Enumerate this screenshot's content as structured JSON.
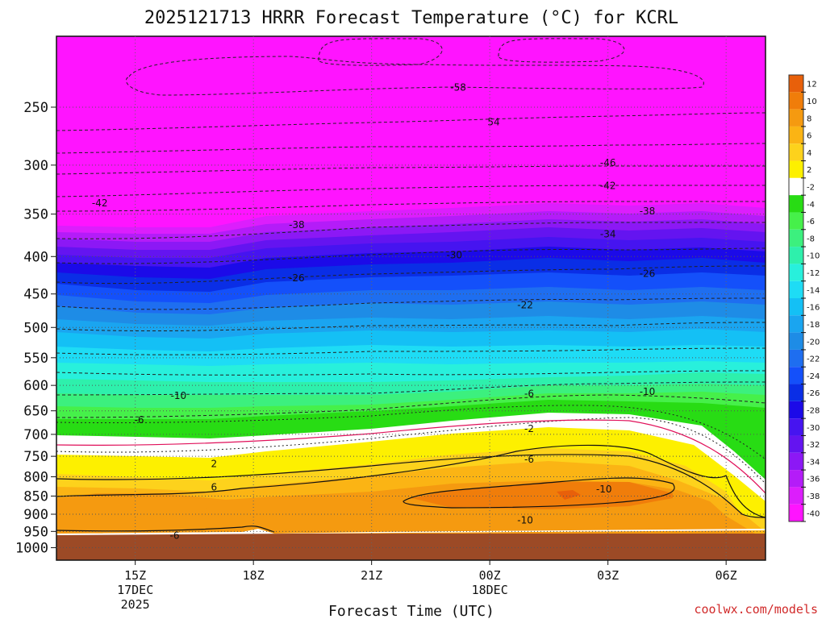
{
  "chart_data": {
    "type": "heatmap",
    "title": "2025121713 HRRR Forecast Temperature (°C) for KCRL",
    "xlabel": "Forecast Time (UTC)",
    "ylabel": "",
    "credit": "coolwx.com/models",
    "x_ticks": [
      {
        "label": "15Z",
        "hour": 15,
        "sub": [
          "17DEC",
          "2025"
        ]
      },
      {
        "label": "18Z",
        "hour": 18,
        "sub": []
      },
      {
        "label": "21Z",
        "hour": 21,
        "sub": []
      },
      {
        "label": "00Z",
        "hour": 24,
        "sub": [
          "18DEC"
        ]
      },
      {
        "label": "03Z",
        "hour": 27,
        "sub": []
      },
      {
        "label": "06Z",
        "hour": 30,
        "sub": []
      }
    ],
    "xlim_hours": [
      13,
      31
    ],
    "y_ticks": [
      250,
      300,
      350,
      400,
      450,
      500,
      550,
      600,
      650,
      700,
      750,
      800,
      850,
      900,
      950,
      1000
    ],
    "ylim_hPa": [
      200,
      1040
    ],
    "y_scale": "log",
    "ground_pressure_hPa": 968,
    "colorbar": {
      "labels": [
        "12",
        "10",
        "8",
        "6",
        "4",
        "2",
        "-2",
        "-4",
        "-6",
        "-8",
        "-10",
        "-12",
        "-14",
        "-16",
        "-18",
        "-20",
        "-22",
        "-24",
        "-26",
        "-28",
        "-30",
        "-32",
        "-34",
        "-36",
        "-38",
        "-40"
      ],
      "colors": [
        "#e8600a",
        "#f07d0a",
        "#f59a10",
        "#fbb414",
        "#fdd21c",
        "#fdf000",
        "#ffffff",
        "#28dc14",
        "#46f04a",
        "#3cf07e",
        "#2ef0ac",
        "#28f0dc",
        "#1edcf5",
        "#14c0f5",
        "#1aa5f0",
        "#1e8ce6",
        "#1e6ef0",
        "#1450fa",
        "#0a2ee6",
        "#1c0ae8",
        "#4614f0",
        "#6414f0",
        "#8c18f5",
        "#b41cf8",
        "#dc1efc",
        "#ff14ff"
      ]
    },
    "isotherms": [
      {
        "value": "-58",
        "hour": 23.2,
        "p": 235
      },
      {
        "value": "54",
        "hour": 24.1,
        "p": 262
      },
      {
        "value": "-46",
        "hour": 27.0,
        "p": 298
      },
      {
        "value": "-42",
        "hour": 27.0,
        "p": 320
      },
      {
        "value": "-42",
        "hour": 14.1,
        "p": 338
      },
      {
        "value": "-38",
        "hour": 19.1,
        "p": 362
      },
      {
        "value": "-38",
        "hour": 28.0,
        "p": 347
      },
      {
        "value": "-34",
        "hour": 27.0,
        "p": 373
      },
      {
        "value": "-30",
        "hour": 23.1,
        "p": 398
      },
      {
        "value": "-26",
        "hour": 19.1,
        "p": 428
      },
      {
        "value": "-26",
        "hour": 28.0,
        "p": 422
      },
      {
        "value": "-22",
        "hour": 24.9,
        "p": 466
      },
      {
        "value": "-10",
        "hour": 16.1,
        "p": 620
      },
      {
        "value": "-10",
        "hour": 28.0,
        "p": 612
      },
      {
        "value": "-6",
        "hour": 15.1,
        "p": 669
      },
      {
        "value": "-6",
        "hour": 25.0,
        "p": 616
      },
      {
        "value": "-2",
        "hour": 25.0,
        "p": 688
      },
      {
        "value": "2",
        "hour": 17.0,
        "p": 768
      },
      {
        "value": "-6",
        "hour": 25.0,
        "p": 757
      },
      {
        "value": "6",
        "hour": 17.0,
        "p": 827
      },
      {
        "value": "-10",
        "hour": 26.9,
        "p": 832
      },
      {
        "value": "-10",
        "hour": 24.9,
        "p": 917
      },
      {
        "value": "-6",
        "hour": 16.0,
        "p": 962
      }
    ]
  }
}
